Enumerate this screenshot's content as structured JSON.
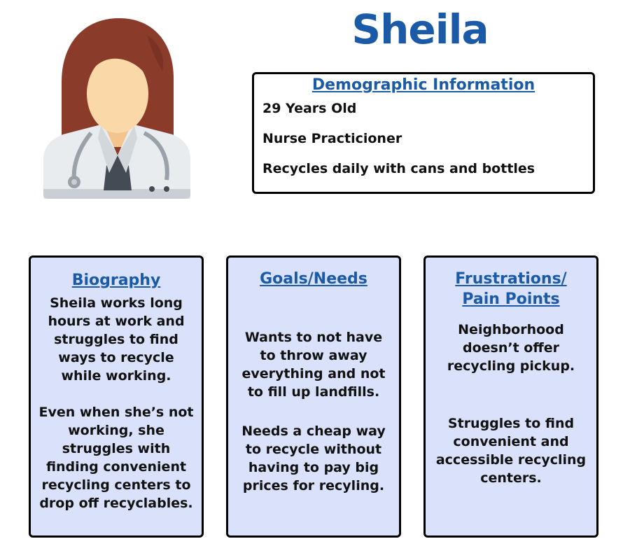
{
  "persona": {
    "name": "Sheila",
    "avatar_icon": "nurse-avatar-icon"
  },
  "demographics": {
    "title": "Demographic Information",
    "items": [
      "29 Years Old",
      "Nurse Practicioner",
      "Recycles daily with cans and bottles"
    ]
  },
  "cards": {
    "biography": {
      "title": "Biography",
      "paragraphs": [
        "Sheila works long hours at work and struggles to find ways to recycle while working.",
        "Even when she’s not working, she struggles with finding convenient recycling centers to drop off recyclables."
      ]
    },
    "goals": {
      "title": "Goals/Needs",
      "paragraphs": [
        "Wants to not have to throw away everything and not to fill up landfills.",
        "Needs a cheap way to recycle without having to pay big prices for recyling."
      ]
    },
    "frustrations": {
      "title_lines": [
        "Frustrations/",
        "Pain Points"
      ],
      "paragraphs": [
        "Neighborhood doesn’t offer recycling pickup.",
        "Struggles to find convenient and accessible recycling centers."
      ]
    }
  },
  "colors": {
    "accent_blue": "#1b5aa6",
    "card_background": "#d9e1fb",
    "hair": "#8a3b2a",
    "skin": "#fbd8a8",
    "coat": "#e8ecef"
  }
}
